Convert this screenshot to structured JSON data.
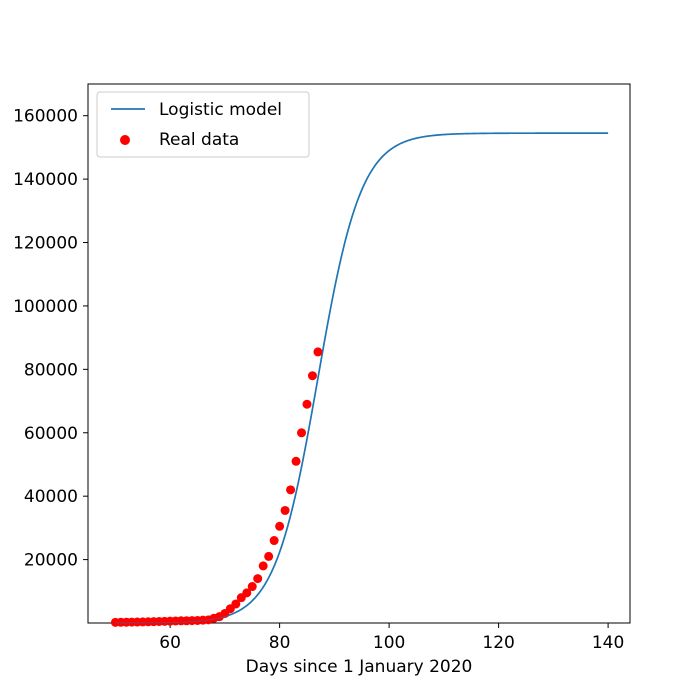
{
  "chart_data": {
    "type": "line",
    "xlabel": "Days since 1 January 2020",
    "ylabel": "",
    "xlim": [
      45,
      144
    ],
    "ylim": [
      0,
      170000
    ],
    "x_ticks": [
      60,
      80,
      100,
      120,
      140
    ],
    "y_ticks": [
      20000,
      40000,
      60000,
      80000,
      100000,
      120000,
      140000,
      160000
    ],
    "grid": false,
    "legend_position": "upper-left",
    "series": [
      {
        "name": "Logistic model",
        "kind": "line",
        "color": "#1f77b4",
        "x_range": [
          50,
          140
        ],
        "model": {
          "a": 3.94,
          "b": 87.0,
          "c": 154500
        }
      },
      {
        "name": "Real data",
        "kind": "scatter",
        "color": "#ff0000",
        "x": [
          50,
          51,
          52,
          53,
          54,
          55,
          56,
          57,
          58,
          59,
          60,
          61,
          62,
          63,
          64,
          65,
          66,
          67,
          68,
          69,
          70,
          71,
          72,
          73,
          74,
          75,
          76,
          77,
          78,
          79,
          80,
          81,
          82,
          83,
          84,
          85,
          86,
          87
        ],
        "y": [
          200,
          220,
          250,
          280,
          300,
          350,
          380,
          420,
          480,
          520,
          580,
          650,
          700,
          700,
          750,
          800,
          900,
          1000,
          1500,
          2000,
          3000,
          4500,
          6000,
          8000,
          9500,
          11500,
          14000,
          18000,
          21000,
          26000,
          30500,
          35500,
          42000,
          51000,
          60000,
          69000,
          78000,
          85500
        ]
      }
    ]
  }
}
